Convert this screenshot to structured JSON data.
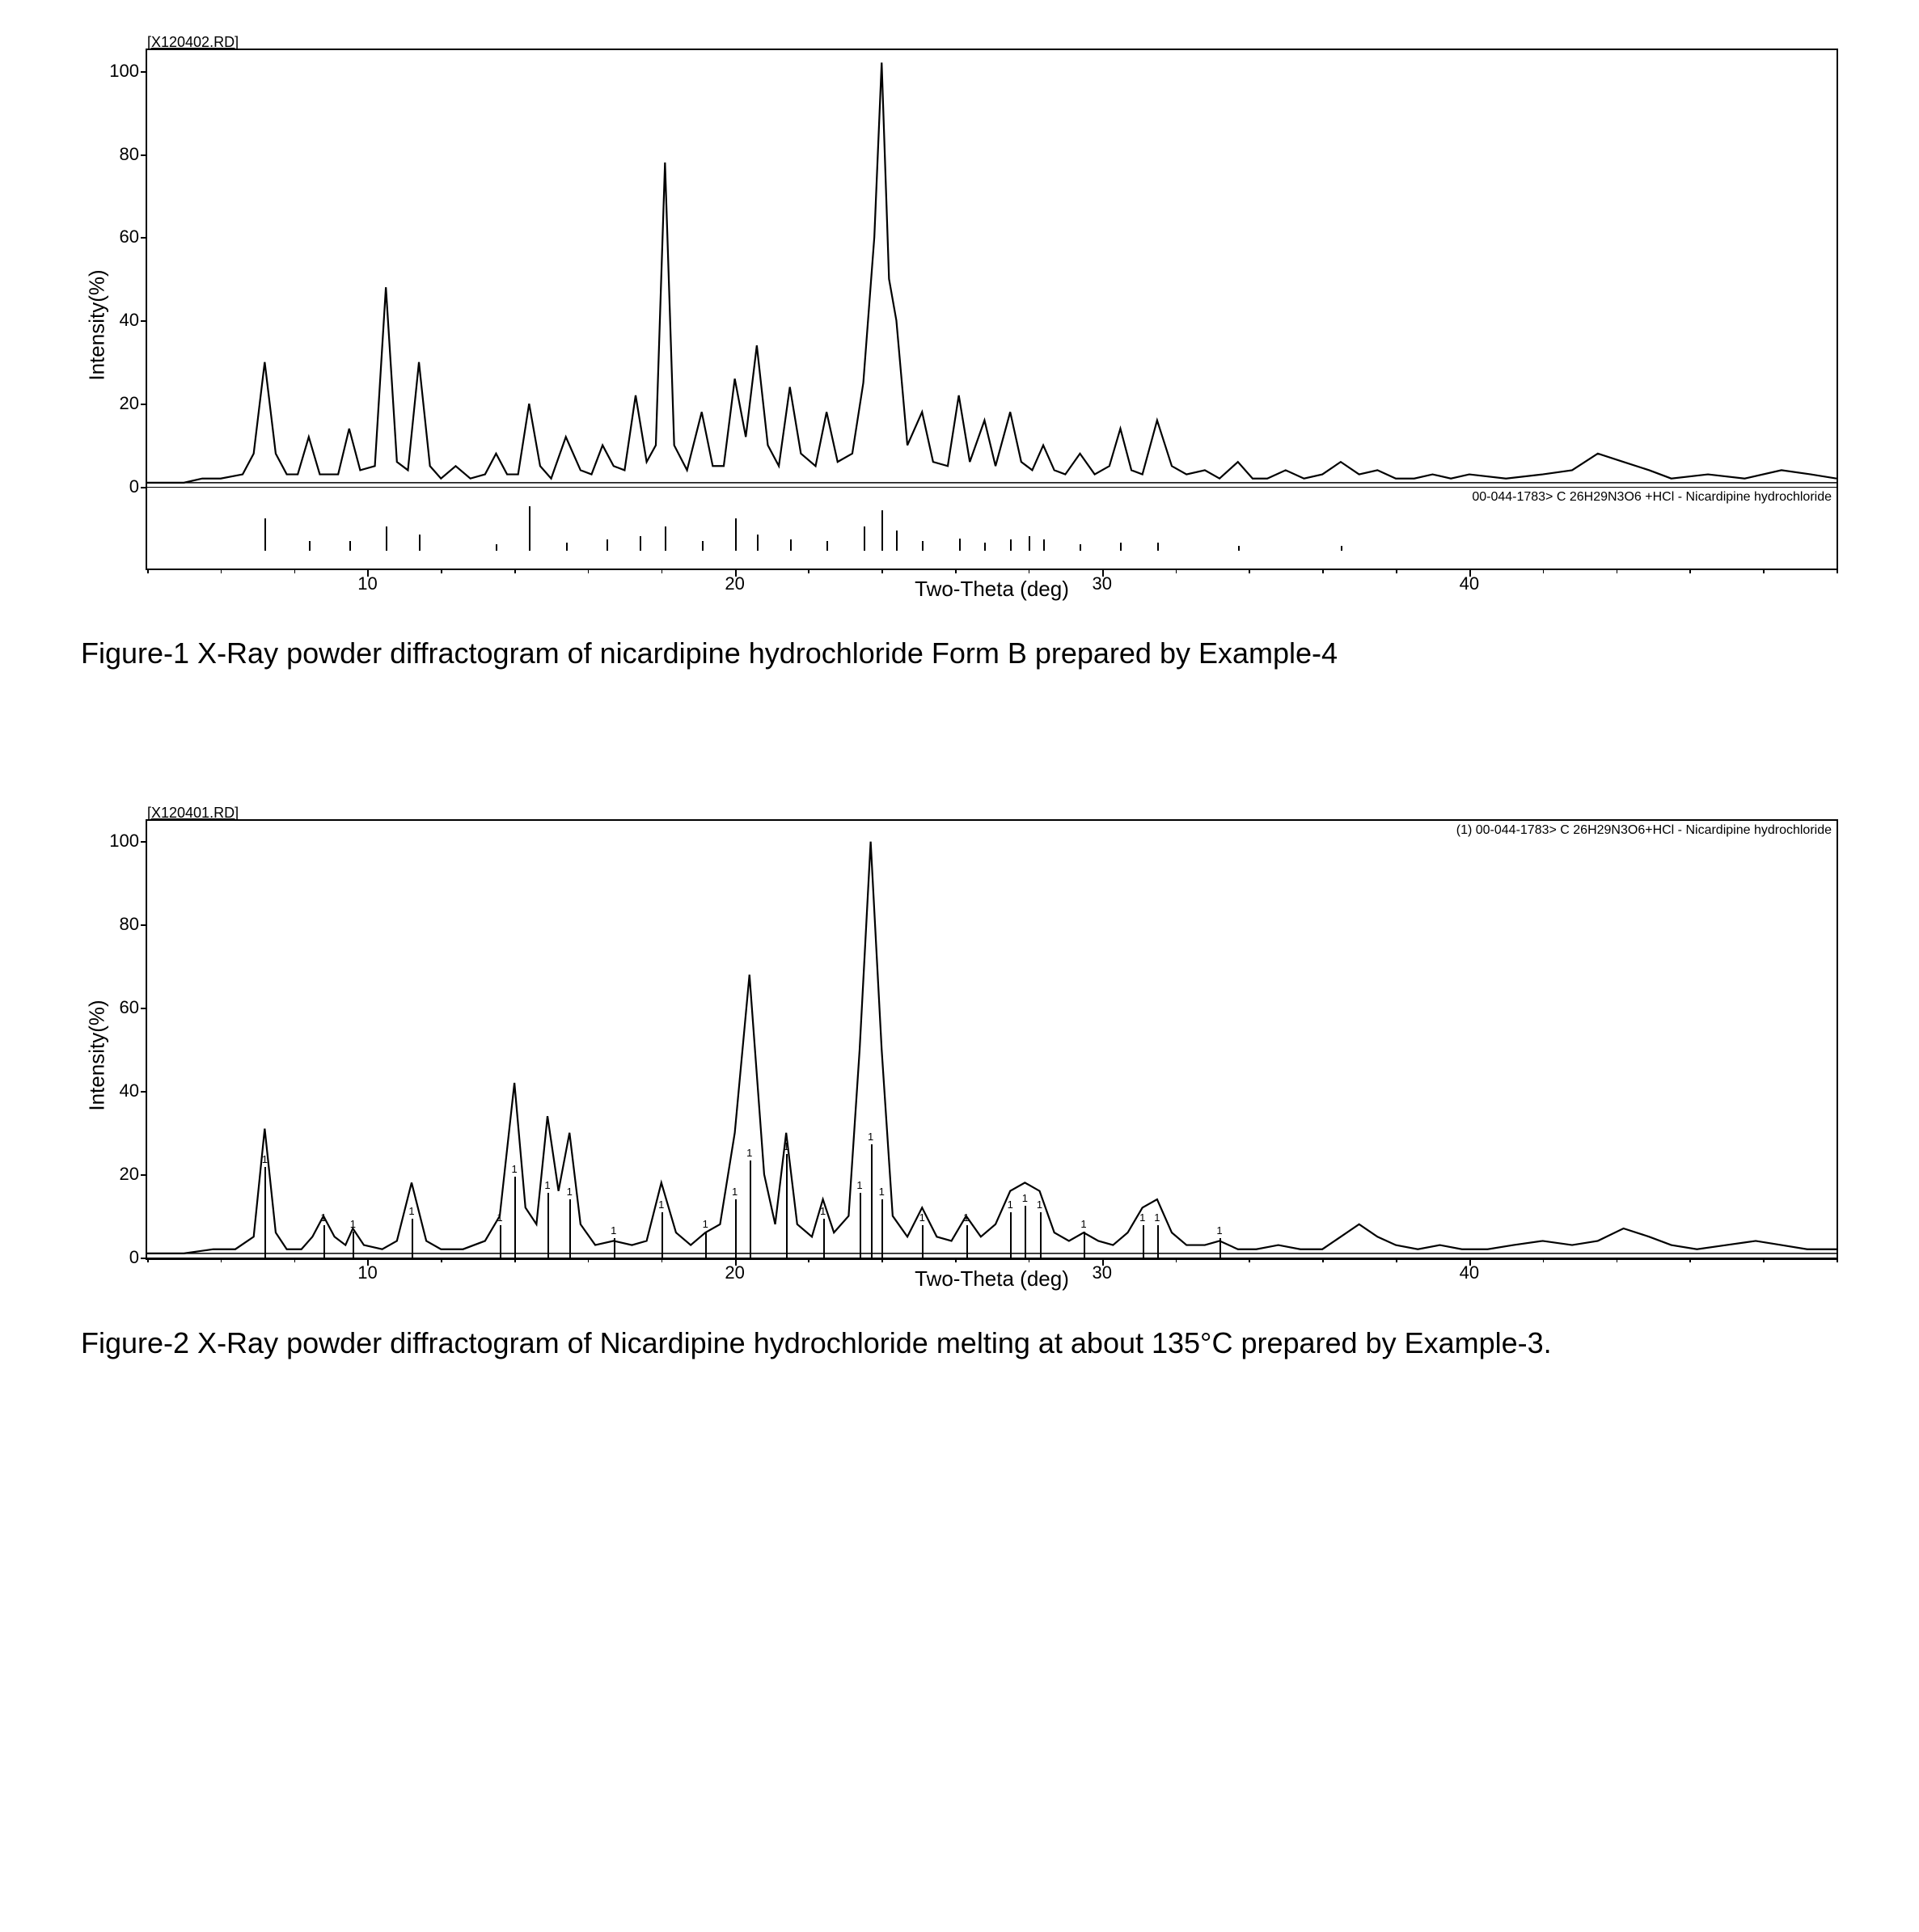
{
  "figure1": {
    "header_tag": "[X120402.RD]",
    "y_label": "Intensity(%)",
    "x_label": "Two-Theta (deg)",
    "ref_label": "00-044-1783> C 26H29N3O6 +HCl - Nicardipine hydrochloride",
    "caption": "Figure-1 X-Ray powder diffractogram of nicardipine hydrochloride Form B prepared by Example-4",
    "plot": {
      "xlim": [
        4,
        50
      ],
      "ylim": [
        0,
        105
      ],
      "yticks": [
        0,
        20,
        40,
        60,
        80,
        100
      ],
      "xticks_major": [
        10,
        20,
        30,
        40
      ],
      "xticks_minor_step": 2,
      "line_color": "#000000",
      "line_width": 2.2,
      "background_color": "#ffffff",
      "border_color": "#000000",
      "curve": [
        [
          4,
          1
        ],
        [
          5,
          1
        ],
        [
          5.5,
          2
        ],
        [
          6,
          2
        ],
        [
          6.6,
          3
        ],
        [
          6.9,
          8
        ],
        [
          7.2,
          30
        ],
        [
          7.5,
          8
        ],
        [
          7.8,
          3
        ],
        [
          8.1,
          3
        ],
        [
          8.4,
          12
        ],
        [
          8.7,
          3
        ],
        [
          9.2,
          3
        ],
        [
          9.5,
          14
        ],
        [
          9.8,
          4
        ],
        [
          10.2,
          5
        ],
        [
          10.5,
          48
        ],
        [
          10.8,
          6
        ],
        [
          11.1,
          4
        ],
        [
          11.4,
          30
        ],
        [
          11.7,
          5
        ],
        [
          12,
          2
        ],
        [
          12.4,
          5
        ],
        [
          12.8,
          2
        ],
        [
          13.2,
          3
        ],
        [
          13.5,
          8
        ],
        [
          13.8,
          3
        ],
        [
          14.1,
          3
        ],
        [
          14.4,
          20
        ],
        [
          14.7,
          5
        ],
        [
          15,
          2
        ],
        [
          15.4,
          12
        ],
        [
          15.8,
          4
        ],
        [
          16.1,
          3
        ],
        [
          16.4,
          10
        ],
        [
          16.7,
          5
        ],
        [
          17,
          4
        ],
        [
          17.3,
          22
        ],
        [
          17.6,
          6
        ],
        [
          17.85,
          10
        ],
        [
          18.1,
          78
        ],
        [
          18.35,
          10
        ],
        [
          18.7,
          4
        ],
        [
          19.1,
          18
        ],
        [
          19.4,
          5
        ],
        [
          19.7,
          5
        ],
        [
          20,
          26
        ],
        [
          20.3,
          12
        ],
        [
          20.6,
          34
        ],
        [
          20.9,
          10
        ],
        [
          21.2,
          5
        ],
        [
          21.5,
          24
        ],
        [
          21.8,
          8
        ],
        [
          22.2,
          5
        ],
        [
          22.5,
          18
        ],
        [
          22.8,
          6
        ],
        [
          23.2,
          8
        ],
        [
          23.5,
          25
        ],
        [
          23.8,
          60
        ],
        [
          24,
          102
        ],
        [
          24.2,
          50
        ],
        [
          24.4,
          40
        ],
        [
          24.7,
          10
        ],
        [
          25.1,
          18
        ],
        [
          25.4,
          6
        ],
        [
          25.8,
          5
        ],
        [
          26.1,
          22
        ],
        [
          26.4,
          6
        ],
        [
          26.8,
          16
        ],
        [
          27.1,
          5
        ],
        [
          27.5,
          18
        ],
        [
          27.8,
          6
        ],
        [
          28.1,
          4
        ],
        [
          28.4,
          10
        ],
        [
          28.7,
          4
        ],
        [
          29,
          3
        ],
        [
          29.4,
          8
        ],
        [
          29.8,
          3
        ],
        [
          30.2,
          5
        ],
        [
          30.5,
          14
        ],
        [
          30.8,
          4
        ],
        [
          31.1,
          3
        ],
        [
          31.5,
          16
        ],
        [
          31.9,
          5
        ],
        [
          32.3,
          3
        ],
        [
          32.8,
          4
        ],
        [
          33.2,
          2
        ],
        [
          33.7,
          6
        ],
        [
          34.1,
          2
        ],
        [
          34.5,
          2
        ],
        [
          35,
          4
        ],
        [
          35.5,
          2
        ],
        [
          36,
          3
        ],
        [
          36.5,
          6
        ],
        [
          37,
          3
        ],
        [
          37.5,
          4
        ],
        [
          38,
          2
        ],
        [
          38.5,
          2
        ],
        [
          39,
          3
        ],
        [
          39.5,
          2
        ],
        [
          40,
          3
        ],
        [
          41,
          2
        ],
        [
          42,
          3
        ],
        [
          42.8,
          4
        ],
        [
          43.5,
          8
        ],
        [
          44.2,
          6
        ],
        [
          44.9,
          4
        ],
        [
          45.5,
          2
        ],
        [
          46.5,
          3
        ],
        [
          47.5,
          2
        ],
        [
          48.5,
          4
        ],
        [
          49.3,
          3
        ],
        [
          50,
          2
        ]
      ]
    },
    "ref_sticks": [
      {
        "x": 7.2,
        "h": 40
      },
      {
        "x": 8.4,
        "h": 12
      },
      {
        "x": 9.5,
        "h": 12
      },
      {
        "x": 10.5,
        "h": 30
      },
      {
        "x": 11.4,
        "h": 20
      },
      {
        "x": 13.5,
        "h": 8
      },
      {
        "x": 14.4,
        "h": 55
      },
      {
        "x": 15.4,
        "h": 10
      },
      {
        "x": 16.5,
        "h": 14
      },
      {
        "x": 17.4,
        "h": 18
      },
      {
        "x": 18.1,
        "h": 30
      },
      {
        "x": 19.1,
        "h": 12
      },
      {
        "x": 20,
        "h": 40
      },
      {
        "x": 20.6,
        "h": 20
      },
      {
        "x": 21.5,
        "h": 14
      },
      {
        "x": 22.5,
        "h": 12
      },
      {
        "x": 23.5,
        "h": 30
      },
      {
        "x": 24,
        "h": 50
      },
      {
        "x": 24.4,
        "h": 25
      },
      {
        "x": 25.1,
        "h": 12
      },
      {
        "x": 26.1,
        "h": 15
      },
      {
        "x": 26.8,
        "h": 10
      },
      {
        "x": 27.5,
        "h": 14
      },
      {
        "x": 28,
        "h": 18
      },
      {
        "x": 28.4,
        "h": 14
      },
      {
        "x": 29.4,
        "h": 8
      },
      {
        "x": 30.5,
        "h": 10
      },
      {
        "x": 31.5,
        "h": 10
      },
      {
        "x": 33.7,
        "h": 6
      },
      {
        "x": 36.5,
        "h": 6
      }
    ]
  },
  "figure2": {
    "header_tag": "[X120401.RD]",
    "y_label": "Intensity(%)",
    "x_label": "Two-Theta (deg)",
    "ref_label": "(1) 00-044-1783> C 26H29N3O6+HCl - Nicardipine hydrochloride",
    "caption": "Figure-2 X-Ray powder diffractogram of Nicardipine hydrochloride melting at about 135°C prepared by Example-3.",
    "plot": {
      "xlim": [
        4,
        50
      ],
      "ylim": [
        0,
        105
      ],
      "yticks": [
        0,
        20,
        40,
        60,
        80,
        100
      ],
      "xticks_major": [
        10,
        20,
        30,
        40
      ],
      "xticks_minor_step": 2,
      "line_color": "#000000",
      "line_width": 2.2,
      "background_color": "#ffffff",
      "border_color": "#000000",
      "curve": [
        [
          4,
          1
        ],
        [
          5,
          1
        ],
        [
          5.8,
          2
        ],
        [
          6.4,
          2
        ],
        [
          6.9,
          5
        ],
        [
          7.2,
          31
        ],
        [
          7.5,
          6
        ],
        [
          7.8,
          2
        ],
        [
          8.2,
          2
        ],
        [
          8.5,
          5
        ],
        [
          8.8,
          10
        ],
        [
          9.1,
          5
        ],
        [
          9.4,
          3
        ],
        [
          9.6,
          7
        ],
        [
          9.9,
          3
        ],
        [
          10.4,
          2
        ],
        [
          10.8,
          4
        ],
        [
          11.2,
          18
        ],
        [
          11.6,
          4
        ],
        [
          12,
          2
        ],
        [
          12.6,
          2
        ],
        [
          13.2,
          4
        ],
        [
          13.6,
          10
        ],
        [
          14,
          42
        ],
        [
          14.3,
          12
        ],
        [
          14.6,
          8
        ],
        [
          14.9,
          34
        ],
        [
          15.2,
          16
        ],
        [
          15.5,
          30
        ],
        [
          15.8,
          8
        ],
        [
          16.2,
          3
        ],
        [
          16.7,
          4
        ],
        [
          17.2,
          3
        ],
        [
          17.6,
          4
        ],
        [
          18,
          18
        ],
        [
          18.4,
          6
        ],
        [
          18.8,
          3
        ],
        [
          19.2,
          6
        ],
        [
          19.6,
          8
        ],
        [
          20,
          30
        ],
        [
          20.4,
          68
        ],
        [
          20.8,
          20
        ],
        [
          21.1,
          8
        ],
        [
          21.4,
          30
        ],
        [
          21.7,
          8
        ],
        [
          22.1,
          5
        ],
        [
          22.4,
          14
        ],
        [
          22.7,
          6
        ],
        [
          23.1,
          10
        ],
        [
          23.4,
          50
        ],
        [
          23.7,
          100
        ],
        [
          24,
          50
        ],
        [
          24.3,
          10
        ],
        [
          24.7,
          5
        ],
        [
          25.1,
          12
        ],
        [
          25.5,
          5
        ],
        [
          25.9,
          4
        ],
        [
          26.3,
          10
        ],
        [
          26.7,
          5
        ],
        [
          27.1,
          8
        ],
        [
          27.5,
          16
        ],
        [
          27.9,
          18
        ],
        [
          28.3,
          16
        ],
        [
          28.7,
          6
        ],
        [
          29.1,
          4
        ],
        [
          29.5,
          6
        ],
        [
          29.9,
          4
        ],
        [
          30.3,
          3
        ],
        [
          30.7,
          6
        ],
        [
          31.1,
          12
        ],
        [
          31.5,
          14
        ],
        [
          31.9,
          6
        ],
        [
          32.3,
          3
        ],
        [
          32.8,
          3
        ],
        [
          33.2,
          4
        ],
        [
          33.7,
          2
        ],
        [
          34.2,
          2
        ],
        [
          34.8,
          3
        ],
        [
          35.4,
          2
        ],
        [
          36,
          2
        ],
        [
          36.5,
          5
        ],
        [
          37,
          8
        ],
        [
          37.5,
          5
        ],
        [
          38,
          3
        ],
        [
          38.6,
          2
        ],
        [
          39.2,
          3
        ],
        [
          39.8,
          2
        ],
        [
          40.5,
          2
        ],
        [
          41.2,
          3
        ],
        [
          42,
          4
        ],
        [
          42.8,
          3
        ],
        [
          43.5,
          4
        ],
        [
          44.2,
          7
        ],
        [
          44.9,
          5
        ],
        [
          45.5,
          3
        ],
        [
          46.2,
          2
        ],
        [
          47,
          3
        ],
        [
          47.8,
          4
        ],
        [
          48.5,
          3
        ],
        [
          49.2,
          2
        ],
        [
          50,
          2
        ]
      ]
    },
    "ref_sticks_fig2": [
      {
        "x": 7.2,
        "h": 28
      },
      {
        "x": 8.8,
        "h": 10
      },
      {
        "x": 9.6,
        "h": 8
      },
      {
        "x": 11.2,
        "h": 12
      },
      {
        "x": 13.6,
        "h": 10
      },
      {
        "x": 14,
        "h": 25
      },
      {
        "x": 14.9,
        "h": 20
      },
      {
        "x": 15.5,
        "h": 18
      },
      {
        "x": 16.7,
        "h": 6
      },
      {
        "x": 18,
        "h": 14
      },
      {
        "x": 19.2,
        "h": 8
      },
      {
        "x": 20,
        "h": 18
      },
      {
        "x": 20.4,
        "h": 30
      },
      {
        "x": 21.4,
        "h": 32
      },
      {
        "x": 22.4,
        "h": 12
      },
      {
        "x": 23.4,
        "h": 20
      },
      {
        "x": 23.7,
        "h": 35
      },
      {
        "x": 24,
        "h": 18
      },
      {
        "x": 25.1,
        "h": 10
      },
      {
        "x": 26.3,
        "h": 10
      },
      {
        "x": 27.5,
        "h": 14
      },
      {
        "x": 27.9,
        "h": 16
      },
      {
        "x": 28.3,
        "h": 14
      },
      {
        "x": 29.5,
        "h": 8
      },
      {
        "x": 31.1,
        "h": 10
      },
      {
        "x": 31.5,
        "h": 10
      },
      {
        "x": 33.2,
        "h": 6
      }
    ]
  }
}
